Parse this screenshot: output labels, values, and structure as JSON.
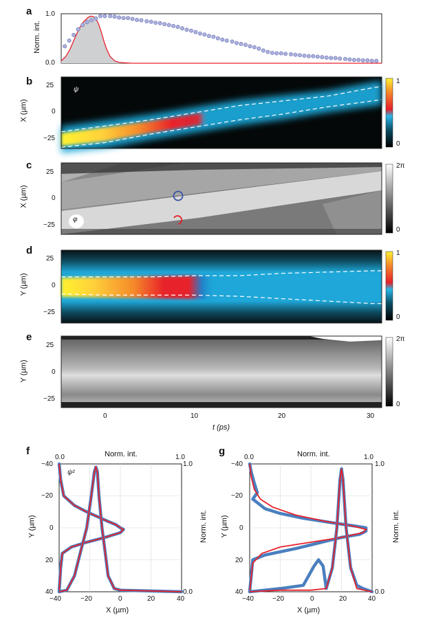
{
  "panels": {
    "a": {
      "letter": "a",
      "ylabel": "Norm. int.",
      "yticks": [
        "1.0",
        "0.0"
      ]
    },
    "b": {
      "letter": "b",
      "ylabel": "X (µm)",
      "yticks": [
        "25",
        "0",
        "−25"
      ],
      "tag": "ψ",
      "cbar": [
        "1",
        "0"
      ]
    },
    "c": {
      "letter": "c",
      "ylabel": "X (µm)",
      "yticks": [
        "25",
        "0",
        "−25"
      ],
      "tag": "φ",
      "cbar": [
        "2π",
        "0"
      ]
    },
    "d": {
      "letter": "d",
      "ylabel": "Y (µm)",
      "yticks": [
        "25",
        "0",
        "−25"
      ],
      "cbar": [
        "1",
        "0"
      ]
    },
    "e": {
      "letter": "e",
      "ylabel": "Y (µm)",
      "yticks": [
        "25",
        "0",
        "−25"
      ],
      "cbar": [
        "2π",
        "0"
      ]
    },
    "time_axis": {
      "xticks": [
        "0",
        "10",
        "20",
        "30"
      ],
      "xlabel": "t (ps)"
    },
    "f": {
      "letter": "f",
      "top_label": "Norm. int.",
      "top_ticks": [
        "0.0",
        "1.0"
      ],
      "right_label": "Norm. int.",
      "right_ticks": [
        "1.0",
        "0.0"
      ],
      "yticks": [
        "−40",
        "−20",
        "0",
        "20",
        "40"
      ],
      "xticks": [
        "−40",
        "−20",
        "0",
        "20",
        "40"
      ],
      "ylabel": "Y (µm)",
      "xlabel": "X (µm)",
      "tag": "ψ²"
    },
    "g": {
      "letter": "g",
      "top_label": "Norm. int.",
      "top_ticks": [
        "0.0",
        "1.0"
      ],
      "right_label": "Norm. int.",
      "right_ticks": [
        "1.0",
        "0.0"
      ],
      "yticks": [
        "−40",
        "−20",
        "0",
        "20",
        "40"
      ],
      "xticks": [
        "−40",
        "−20",
        "0",
        "20",
        "40"
      ],
      "ylabel": "Y (µm)",
      "xlabel": "X (µm)"
    }
  },
  "chart_data": [
    {
      "type": "scatter",
      "panel": "a",
      "x_unit": "ps",
      "xlim": [
        -5,
        31
      ],
      "ylim": [
        0,
        1.05
      ],
      "series": [
        {
          "style": "points",
          "color": "#8f97cf",
          "x": [
            -4.6,
            -4.1,
            -3.6,
            -3.1,
            -2.6,
            -2.1,
            -1.6,
            -1.1,
            -0.6,
            -0.1,
            0.5,
            1.0,
            1.5,
            2.0,
            2.5,
            3.0,
            3.5,
            4.0,
            4.6,
            5.1,
            5.6,
            6.1,
            6.6,
            7.1,
            7.6,
            8.1,
            8.6,
            9.1,
            9.6,
            10.1,
            10.6,
            11.1,
            11.6,
            12.1,
            12.6,
            13.1,
            13.6,
            14.2,
            14.7,
            15.2,
            15.7,
            16.2,
            16.7,
            17.2,
            17.7,
            18.2,
            18.7,
            19.2,
            19.7,
            20.2,
            20.8,
            21.3,
            21.8,
            22.3,
            22.8,
            23.3,
            23.8,
            24.3,
            24.8,
            25.3,
            25.8,
            26.3,
            26.9,
            27.4,
            27.9,
            28.4,
            28.9,
            29.4,
            29.9,
            30.4
          ],
          "y": [
            0.36,
            0.48,
            0.6,
            0.72,
            0.81,
            0.87,
            0.91,
            0.95,
            1.0,
            1.0,
            1.0,
            0.99,
            0.97,
            0.96,
            0.96,
            0.94,
            0.92,
            0.91,
            0.89,
            0.88,
            0.86,
            0.85,
            0.83,
            0.81,
            0.79,
            0.77,
            0.74,
            0.71,
            0.69,
            0.66,
            0.63,
            0.61,
            0.58,
            0.56,
            0.53,
            0.5,
            0.48,
            0.46,
            0.43,
            0.41,
            0.39,
            0.36,
            0.34,
            0.31,
            0.27,
            0.24,
            0.22,
            0.21,
            0.21,
            0.2,
            0.19,
            0.18,
            0.17,
            0.16,
            0.15,
            0.15,
            0.14,
            0.13,
            0.12,
            0.11,
            0.11,
            0.1,
            0.09,
            0.08,
            0.07,
            0.07,
            0.06,
            0.06,
            0.05,
            0.05
          ]
        },
        {
          "style": "filled-curve",
          "color": "#e8202a",
          "x": [
            -5,
            -4.5,
            -4,
            -3.5,
            -3,
            -2.5,
            -2,
            -1.7,
            -1.4,
            -1.1,
            -0.8,
            -0.5,
            -0.2,
            0.1,
            0.5,
            1,
            1.5,
            2,
            3,
            5,
            31
          ],
          "y": [
            0.05,
            0.14,
            0.3,
            0.52,
            0.73,
            0.88,
            0.97,
            1.0,
            0.99,
            0.94,
            0.83,
            0.66,
            0.47,
            0.3,
            0.14,
            0.05,
            0.02,
            0.01,
            0,
            0,
            0
          ]
        }
      ]
    },
    {
      "type": "heatmap",
      "panel": "b",
      "x_unit": "ps",
      "y_unit": "µm",
      "xlim": [
        -5,
        31
      ],
      "ylim": [
        -30,
        30
      ],
      "colorbar": [
        0,
        1
      ],
      "ridge": {
        "x": [
          -5,
          0,
          5,
          10,
          15,
          20,
          25,
          30,
          31
        ],
        "y": [
          -23,
          -18,
          -12,
          -6,
          0,
          5,
          10,
          16,
          17
        ]
      },
      "dashed_upper": {
        "x": [
          -5,
          0,
          5,
          10,
          15,
          20,
          25,
          30,
          31
        ],
        "y": [
          -16,
          -11,
          -6,
          0,
          6,
          10,
          14,
          21,
          22
        ]
      },
      "dashed_lower": {
        "x": [
          -5,
          0,
          5,
          10,
          15,
          20,
          25,
          30,
          31
        ],
        "y": [
          -29,
          -25,
          -18,
          -12,
          -6,
          -1,
          5,
          10,
          11
        ]
      }
    },
    {
      "type": "heatmap",
      "panel": "c",
      "x_unit": "ps",
      "y_unit": "µm",
      "xlim": [
        -5,
        31
      ],
      "ylim": [
        -30,
        30
      ],
      "colorbar": [
        "0",
        "2π"
      ]
    },
    {
      "type": "heatmap",
      "panel": "d",
      "x_unit": "ps",
      "y_unit": "µm",
      "xlim": [
        -5,
        31
      ],
      "ylim": [
        -30,
        30
      ],
      "colorbar": [
        0,
        1
      ],
      "dashed_upper": {
        "x": [
          -5,
          0,
          5,
          10,
          15,
          20,
          25,
          30,
          31
        ],
        "y": [
          8,
          8,
          8,
          9,
          9,
          11,
          12,
          13,
          13
        ]
      },
      "dashed_lower": {
        "x": [
          -5,
          0,
          5,
          10,
          15,
          20,
          25,
          30,
          31
        ],
        "y": [
          -6,
          -7,
          -7,
          -7,
          -8,
          -10,
          -12,
          -14,
          -14
        ]
      }
    },
    {
      "type": "heatmap",
      "panel": "e",
      "x_unit": "ps",
      "y_unit": "µm",
      "xlim": [
        -5,
        31
      ],
      "ylim": [
        -30,
        30
      ],
      "colorbar": [
        "0",
        "2π"
      ]
    },
    {
      "type": "line",
      "panel": "f",
      "xlim": [
        -40,
        40
      ],
      "ylim": [
        40,
        -40
      ],
      "series": [
        {
          "color": "#4a7fbf",
          "style": "points",
          "profile": "vertical",
          "x": [
            -40,
            -39,
            -37,
            -30,
            -22,
            -15,
            -8,
            -3,
            0,
            2,
            0,
            -10,
            -22,
            -32,
            -38,
            -39,
            -40
          ],
          "y": [
            -40,
            -30,
            -20,
            -14,
            -10,
            -7,
            -4,
            -2,
            0,
            1,
            3,
            6,
            9,
            12,
            16,
            25,
            40
          ]
        },
        {
          "color": "#e8202a",
          "style": "line",
          "profile": "vertical",
          "x": [
            -40,
            -39,
            -37,
            -30,
            -22,
            -15,
            -8,
            -3,
            0,
            2,
            0,
            -10,
            -22,
            -32,
            -38,
            -39,
            -40
          ],
          "y": [
            -40,
            -30,
            -20,
            -14,
            -10,
            -7,
            -4,
            -2,
            0,
            1,
            3,
            6,
            9,
            12,
            16,
            25,
            40
          ]
        },
        {
          "color": "#4a7fbf",
          "style": "points",
          "profile": "horizontal",
          "x": [
            -40,
            -35,
            -30,
            -26,
            -22,
            -19,
            -17,
            -16,
            -15,
            -14,
            -12,
            -10,
            -8,
            -4,
            0,
            40
          ],
          "y": [
            40,
            39,
            30,
            15,
            0,
            -20,
            -35,
            -38,
            -35,
            -20,
            0,
            15,
            30,
            38,
            39,
            40
          ]
        },
        {
          "color": "#e8202a",
          "style": "line",
          "profile": "horizontal",
          "x": [
            -40,
            -35,
            -30,
            -26,
            -22,
            -19,
            -17,
            -16,
            -15,
            -14,
            -12,
            -10,
            -8,
            -4,
            0,
            40
          ],
          "y": [
            40,
            39,
            30,
            15,
            0,
            -20,
            -35,
            -38,
            -35,
            -20,
            0,
            15,
            30,
            38,
            39,
            40
          ]
        }
      ]
    },
    {
      "type": "line",
      "panel": "g",
      "xlim": [
        -40,
        40
      ],
      "ylim": [
        40,
        -40
      ],
      "series": [
        {
          "color": "#4a7fbf",
          "style": "points",
          "profile": "vertical",
          "x": [
            -40,
            -39,
            -37,
            -35,
            -38,
            -30,
            -20,
            -5,
            15,
            30,
            36,
            36,
            32,
            20,
            -10,
            -30,
            -38,
            -40
          ],
          "y": [
            -40,
            -35,
            -28,
            -22,
            -18,
            -12,
            -9,
            -6,
            -3,
            -1,
            0,
            2,
            4,
            6,
            13,
            17,
            20,
            40
          ]
        },
        {
          "color": "#e8202a",
          "style": "line",
          "profile": "vertical",
          "x": [
            -40,
            -39,
            -37,
            -33,
            -25,
            -10,
            10,
            28,
            36,
            34,
            20,
            0,
            -20,
            -32,
            -38,
            -40
          ],
          "y": [
            -40,
            -32,
            -24,
            -18,
            -13,
            -8,
            -4,
            -1,
            1,
            3,
            6,
            9,
            12,
            16,
            22,
            40
          ]
        },
        {
          "color": "#4a7fbf",
          "style": "points",
          "profile": "horizontal",
          "x": [
            -40,
            -20,
            -5,
            2,
            5,
            8,
            10,
            14,
            17,
            19,
            20,
            21,
            23,
            26,
            30,
            34,
            40
          ],
          "y": [
            40,
            38,
            36,
            24,
            20,
            24,
            38,
            25,
            0,
            -30,
            -37,
            -30,
            0,
            25,
            36,
            38,
            40
          ]
        },
        {
          "color": "#e8202a",
          "style": "line",
          "profile": "horizontal",
          "x": [
            -40,
            -20,
            0,
            10,
            14,
            17,
            19,
            20,
            21,
            23,
            26,
            30,
            40
          ],
          "y": [
            40,
            39,
            39,
            38,
            25,
            0,
            -30,
            -37,
            -30,
            0,
            25,
            38,
            40
          ]
        }
      ]
    }
  ],
  "colors": {
    "jet_low": "#000000",
    "cyan": "#2ab8e8",
    "red": "#e8202a",
    "yellow": "#fff230",
    "dot_fill": "#aeb3dd",
    "dot_edge": "#6b74b8",
    "blue_line": "#4a7fbf",
    "circle_blue": "#3953a4",
    "circle_red": "#e8202a"
  }
}
